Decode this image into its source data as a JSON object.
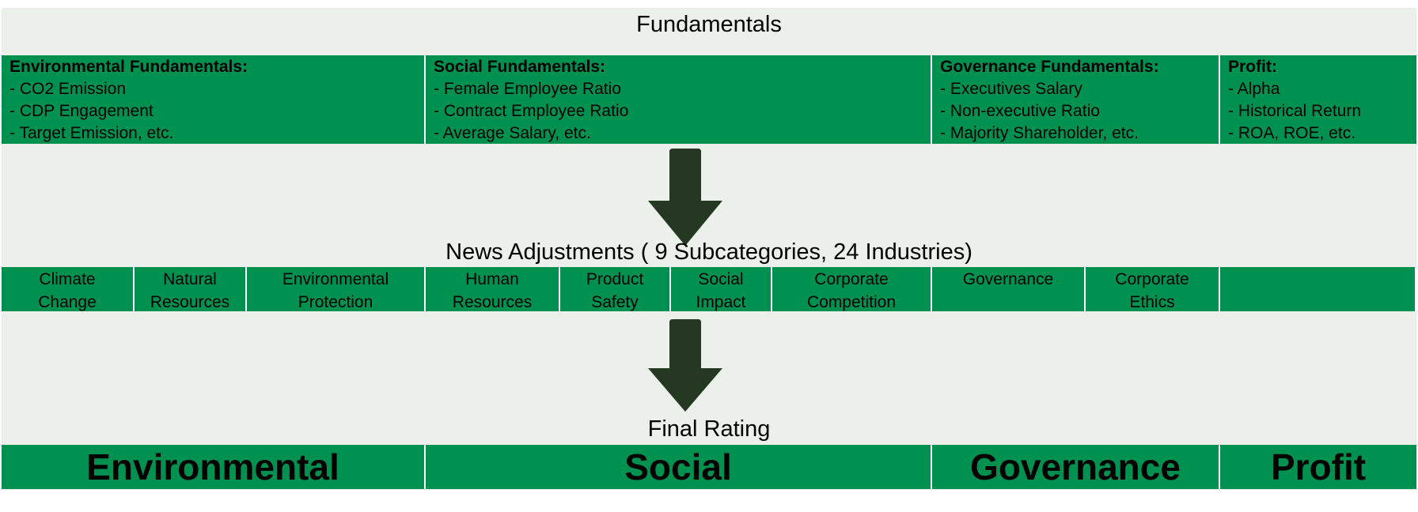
{
  "fundamentals": {
    "heading": "Fundamentals",
    "columns": [
      {
        "title": "Environmental Fundamentals:",
        "items": [
          "- CO2 Emission",
          "- CDP Engagement",
          "- Target Emission, etc."
        ]
      },
      {
        "title": "Social Fundamentals:",
        "items": [
          "- Female Employee Ratio",
          "- Contract Employee Ratio",
          "- Average Salary, etc."
        ]
      },
      {
        "title": "Governance Fundamentals:",
        "items": [
          "- Executives Salary",
          "- Non-executive Ratio",
          "- Majority Shareholder, etc."
        ]
      },
      {
        "title": "Profit:",
        "items": [
          "- Alpha",
          "- Historical Return",
          "- ROA, ROE, etc."
        ]
      }
    ]
  },
  "news": {
    "heading": "News Adjustments ( 9 Subcategories, 24 Industries)",
    "subcategories": [
      {
        "line1": "Climate",
        "line2": "Change"
      },
      {
        "line1": "Natural",
        "line2": "Resources"
      },
      {
        "line1": "Environmental",
        "line2": "Protection"
      },
      {
        "line1": "Human",
        "line2": "Resources"
      },
      {
        "line1": "Product",
        "line2": "Safety"
      },
      {
        "line1": "Social",
        "line2": "Impact"
      },
      {
        "line1": "Corporate",
        "line2": "Competition"
      },
      {
        "line1": "Governance",
        "line2": ""
      },
      {
        "line1": "Corporate",
        "line2": "Ethics"
      },
      {
        "line1": "",
        "line2": ""
      }
    ]
  },
  "final": {
    "heading": "Final Rating",
    "ratings": [
      "Environmental",
      "Social",
      "Governance",
      "Profit"
    ]
  },
  "colors": {
    "cell_green": "#009150",
    "arrow": "#243822",
    "background": "#ebf0ea"
  }
}
